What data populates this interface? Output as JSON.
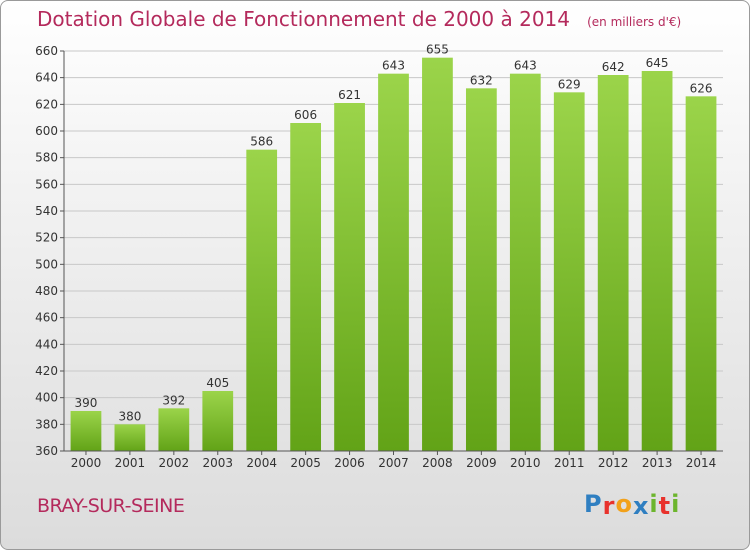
{
  "header": {
    "title": "Dotation Globale de Fonctionnement de 2000 à 2014",
    "unit": "(en milliers d'€)"
  },
  "footer": {
    "commune": "BRAY-SUR-SEINE",
    "logo_letters": [
      {
        "char": "P",
        "color": "#2f7fc1"
      },
      {
        "char": "r",
        "color": "#e8322c"
      },
      {
        "char": "o",
        "color": "#f2a11a"
      },
      {
        "char": "x",
        "color": "#2f7fc1"
      },
      {
        "char": "i",
        "color": "#6cb52d"
      },
      {
        "char": "t",
        "color": "#e8322c"
      },
      {
        "char": "i",
        "color": "#6cb52d"
      }
    ]
  },
  "chart_data": {
    "type": "bar",
    "title": "Dotation Globale de Fonctionnement de 2000 à 2014",
    "subtitle": "(en milliers d'€)",
    "xlabel": "",
    "ylabel": "",
    "categories": [
      "2000",
      "2001",
      "2002",
      "2003",
      "2004",
      "2005",
      "2006",
      "2007",
      "2008",
      "2009",
      "2010",
      "2011",
      "2012",
      "2013",
      "2014"
    ],
    "values": [
      390,
      380,
      392,
      405,
      586,
      606,
      621,
      643,
      655,
      632,
      643,
      629,
      642,
      645,
      626
    ],
    "ylim": [
      360,
      660
    ],
    "yticks": [
      360,
      380,
      400,
      420,
      440,
      460,
      480,
      500,
      520,
      540,
      560,
      580,
      600,
      620,
      640,
      660
    ],
    "grid": true,
    "data_labels": true,
    "bar_color": "#8ccb3a"
  }
}
